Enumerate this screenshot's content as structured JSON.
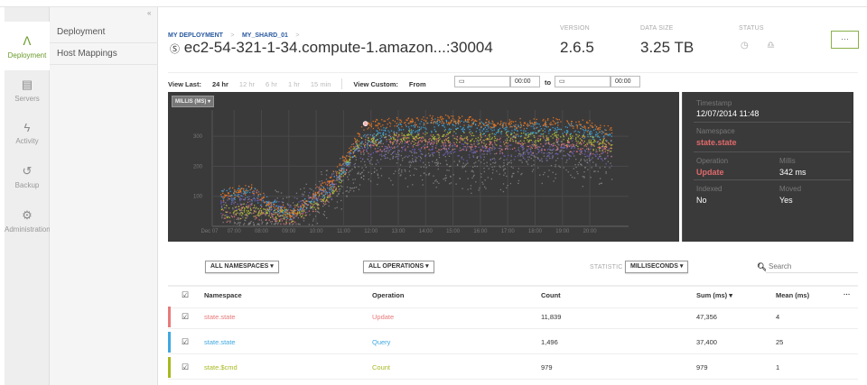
{
  "rail": [
    {
      "label": "Deployment",
      "icon": "deployment-icon",
      "active": true
    },
    {
      "label": "Servers",
      "icon": "servers-icon"
    },
    {
      "label": "Activity",
      "icon": "activity-icon"
    },
    {
      "label": "Backup",
      "icon": "backup-icon"
    },
    {
      "label": "Administration",
      "icon": "gear-icon"
    }
  ],
  "subnav": {
    "items": [
      "Deployment",
      "Host Mappings"
    ]
  },
  "breadcrumb": [
    "MY DEPLOYMENT",
    "MY_SHARD_01"
  ],
  "header": {
    "title": "ec2-54-321-1-34.compute-1.amazon...:30004",
    "version_label": "VERSION",
    "version": "2.6.5",
    "size_label": "DATA SIZE",
    "size": "3.25 TB",
    "status_label": "STATUS",
    "more": "···"
  },
  "timebar": {
    "view_last": "View Last:",
    "options": [
      "24 hr",
      "12 hr",
      "6 hr",
      "1 hr",
      "15 min"
    ],
    "selected": "24 hr",
    "view_custom": "View Custom:",
    "from": "From",
    "to": "to",
    "from_time": "00:00",
    "to_time": "00:00"
  },
  "chart_data": {
    "type": "scatter",
    "metric_select": "MILLIS (MS) ▾",
    "xticks": [
      "Dec 07",
      "07:00",
      "08:00",
      "09:00",
      "10:00",
      "11:00",
      "12:00",
      "13:00",
      "14:00",
      "15:00",
      "16:00",
      "17:00",
      "18:00",
      "19:00",
      "20:00"
    ],
    "yticks": [
      100,
      200,
      300
    ],
    "ylim": [
      0,
      390
    ],
    "xlim_hours": [
      6.3,
      20.9
    ],
    "grid": true,
    "series": [
      {
        "color": "#888888",
        "band": [
          [
            6.5,
            40
          ],
          [
            9,
            40
          ],
          [
            10.5,
            120
          ],
          [
            11.5,
            200
          ],
          [
            13,
            230
          ],
          [
            15,
            200
          ],
          [
            17,
            210
          ],
          [
            18,
            230
          ],
          [
            19,
            240
          ],
          [
            20.8,
            200
          ]
        ],
        "spread": 70
      },
      {
        "color": "#7060c0",
        "band": [
          [
            6.5,
            70
          ],
          [
            7.5,
            90
          ],
          [
            9,
            50
          ],
          [
            10.5,
            130
          ],
          [
            11.5,
            250
          ],
          [
            13,
            260
          ],
          [
            15,
            250
          ],
          [
            17,
            250
          ],
          [
            19,
            260
          ],
          [
            20.8,
            230
          ]
        ],
        "spread": 30
      },
      {
        "color": "#e87a7a",
        "band": [
          [
            6.5,
            40
          ],
          [
            7.5,
            60
          ],
          [
            9,
            25
          ],
          [
            10.5,
            110
          ],
          [
            11.5,
            270
          ],
          [
            13,
            285
          ],
          [
            15,
            280
          ],
          [
            17,
            275
          ],
          [
            19,
            280
          ],
          [
            20.8,
            260
          ]
        ],
        "spread": 25
      },
      {
        "color": "#b8c830",
        "band": [
          [
            6.5,
            50
          ],
          [
            7.5,
            50
          ],
          [
            9,
            40
          ],
          [
            10.5,
            100
          ],
          [
            11.5,
            280
          ],
          [
            13,
            300
          ],
          [
            15,
            300
          ],
          [
            17,
            295
          ],
          [
            19,
            300
          ],
          [
            20.8,
            270
          ]
        ],
        "spread": 20
      },
      {
        "color": "#40a8e0",
        "band": [
          [
            6.5,
            100
          ],
          [
            7.5,
            120
          ],
          [
            9,
            40
          ],
          [
            10.5,
            130
          ],
          [
            11.5,
            270
          ],
          [
            13,
            330
          ],
          [
            15,
            335
          ],
          [
            17,
            320
          ],
          [
            19,
            330
          ],
          [
            20.8,
            300
          ]
        ],
        "spread": 20
      },
      {
        "color": "#f07a20",
        "band": [
          [
            6.5,
            100
          ],
          [
            7.5,
            130
          ],
          [
            9,
            40
          ],
          [
            10.5,
            150
          ],
          [
            11.8,
            340
          ],
          [
            13,
            350
          ],
          [
            15,
            355
          ],
          [
            17,
            340
          ],
          [
            19,
            350
          ],
          [
            20.8,
            320
          ]
        ],
        "spread": 15
      }
    ],
    "highlight": {
      "x": 11.8,
      "y": 342
    }
  },
  "tooltip": {
    "timestamp_label": "Timestamp",
    "timestamp": "12/07/2014  11:48",
    "namespace_label": "Namespace",
    "namespace": "state.state",
    "operation_label": "Operation",
    "operation": "Update",
    "millis_label": "Millis",
    "millis": "342 ms",
    "indexed_label": "Indexed",
    "indexed": "No",
    "moved_label": "Moved",
    "moved": "Yes"
  },
  "filters": {
    "namespaces": "ALL NAMESPACES ▾",
    "operations": "ALL OPERATIONS ▾",
    "statistic_label": "STATISTIC",
    "statistic": "MILLISECONDS ▾",
    "search_placeholder": "Search"
  },
  "table": {
    "headers": [
      "Namespace",
      "Operation",
      "Count",
      "Sum (ms) ▾",
      "Mean (ms)",
      "···"
    ],
    "rows": [
      {
        "namespace": "state.state",
        "operation": "Update",
        "count": "11,839",
        "sum": "47,356",
        "mean": "4",
        "color": "#e87a7a"
      },
      {
        "namespace": "state.state",
        "operation": "Query",
        "count": "1,496",
        "sum": "37,400",
        "mean": "25",
        "color": "#40a8e0"
      },
      {
        "namespace": "state.$cmd",
        "operation": "Count",
        "count": "979",
        "sum": "979",
        "mean": "1",
        "color": "#a8b820"
      }
    ]
  }
}
